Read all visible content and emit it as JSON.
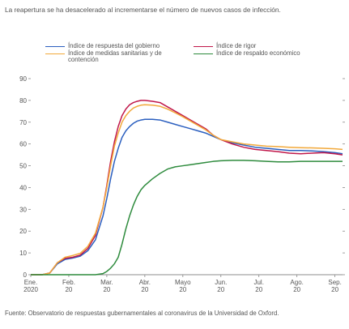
{
  "chart_data": {
    "type": "line",
    "title": "",
    "subtitle": "La reapertura se ha desacelerado al incrementarse el número de nuevos casos de infección.",
    "xlabel": "",
    "ylabel": "",
    "ylim": [
      0,
      90
    ],
    "yticks": [
      0,
      10,
      20,
      30,
      40,
      50,
      60,
      70,
      80,
      90
    ],
    "xlim": [
      0,
      8.2
    ],
    "xticks": [
      {
        "pos": 0,
        "label": [
          "Ene.",
          "2020"
        ]
      },
      {
        "pos": 1,
        "label": [
          "Feb.",
          "20"
        ]
      },
      {
        "pos": 2,
        "label": [
          "Mar.",
          "20"
        ]
      },
      {
        "pos": 3,
        "label": [
          "Abr.",
          "20"
        ]
      },
      {
        "pos": 4,
        "label": [
          "Mayo",
          "20"
        ]
      },
      {
        "pos": 5,
        "label": [
          "Jun.",
          "20"
        ]
      },
      {
        "pos": 6,
        "label": [
          "Jul.",
          "20"
        ]
      },
      {
        "pos": 7,
        "label": [
          "Ago.",
          "20"
        ]
      },
      {
        "pos": 8,
        "label": [
          "Sep.",
          "20"
        ]
      }
    ],
    "x": [
      0,
      0.3,
      0.5,
      0.7,
      0.9,
      1.1,
      1.3,
      1.5,
      1.7,
      1.9,
      2.0,
      2.1,
      2.2,
      2.3,
      2.4,
      2.5,
      2.6,
      2.7,
      2.8,
      2.9,
      3.0,
      3.2,
      3.4,
      3.6,
      3.8,
      4.0,
      4.2,
      4.4,
      4.6,
      4.8,
      5.0,
      5.3,
      5.6,
      5.9,
      6.2,
      6.5,
      6.8,
      7.1,
      7.4,
      7.7,
      8.0,
      8.2
    ],
    "series": [
      {
        "name": "Índice de respuesta del gobierno",
        "color": "#2b5fbf",
        "values": [
          0,
          0,
          0.8,
          5,
          7,
          7.6,
          8.5,
          11,
          16,
          27,
          35,
          44,
          52,
          58,
          63,
          66,
          68,
          69.5,
          70.5,
          71,
          71.3,
          71.3,
          71,
          70,
          69,
          68,
          67,
          66,
          65,
          63.5,
          62,
          60.5,
          59.5,
          58.5,
          58,
          57.5,
          57,
          57,
          56.8,
          56.5,
          56,
          55.5
        ]
      },
      {
        "name": "Índice de rigor",
        "color": "#c0174a",
        "values": [
          0,
          0,
          0.8,
          5.5,
          7.5,
          8,
          9,
          12,
          18,
          31,
          41,
          52,
          61,
          68,
          73,
          76,
          78,
          79,
          79.6,
          80,
          80,
          79.6,
          79,
          77,
          75,
          73,
          71,
          69,
          67,
          64,
          62,
          60,
          58.5,
          57.5,
          57,
          56.5,
          55.8,
          55.5,
          55.8,
          56,
          55.5,
          55
        ]
      },
      {
        "name": "Índice de medidas sanitarias y de contención",
        "color": "#f2a93b",
        "values": [
          0,
          0,
          0.8,
          5.5,
          8,
          8.8,
          9.8,
          13,
          19,
          31,
          40,
          50,
          59,
          65,
          70,
          73,
          75,
          76.5,
          77.3,
          77.8,
          78,
          77.8,
          77.3,
          76,
          74.3,
          72.5,
          70.5,
          68.5,
          66.5,
          64,
          62,
          61,
          60,
          59.5,
          59,
          58.8,
          58.5,
          58.3,
          58.2,
          58,
          57.8,
          57.5
        ]
      },
      {
        "name": "Índice de respaldo económico",
        "color": "#2e8b3d",
        "values": [
          0,
          0,
          0,
          0,
          0,
          0,
          0,
          0,
          0,
          0.5,
          1.5,
          3,
          5,
          8,
          14,
          21,
          27,
          32,
          36,
          39,
          41,
          44,
          46.5,
          48.5,
          49.5,
          50,
          50.5,
          51,
          51.5,
          52,
          52.3,
          52.5,
          52.5,
          52.3,
          52,
          51.8,
          51.8,
          52,
          52,
          52,
          52,
          52
        ]
      }
    ]
  },
  "legend": {
    "left": [
      {
        "label": "Índice de respuesta del gobierno",
        "color": "#2b5fbf"
      },
      {
        "label": "Índice de medidas sanitarias y de contención",
        "color": "#f2a93b"
      }
    ],
    "right": [
      {
        "label": "Índice de rigor",
        "color": "#c0174a"
      },
      {
        "label": "Índice de respaldo económico",
        "color": "#2e8b3d"
      }
    ]
  },
  "source": "Fuente: Observatorio de respuestas gubernamentales al coronavirus de la Universidad de Oxford."
}
